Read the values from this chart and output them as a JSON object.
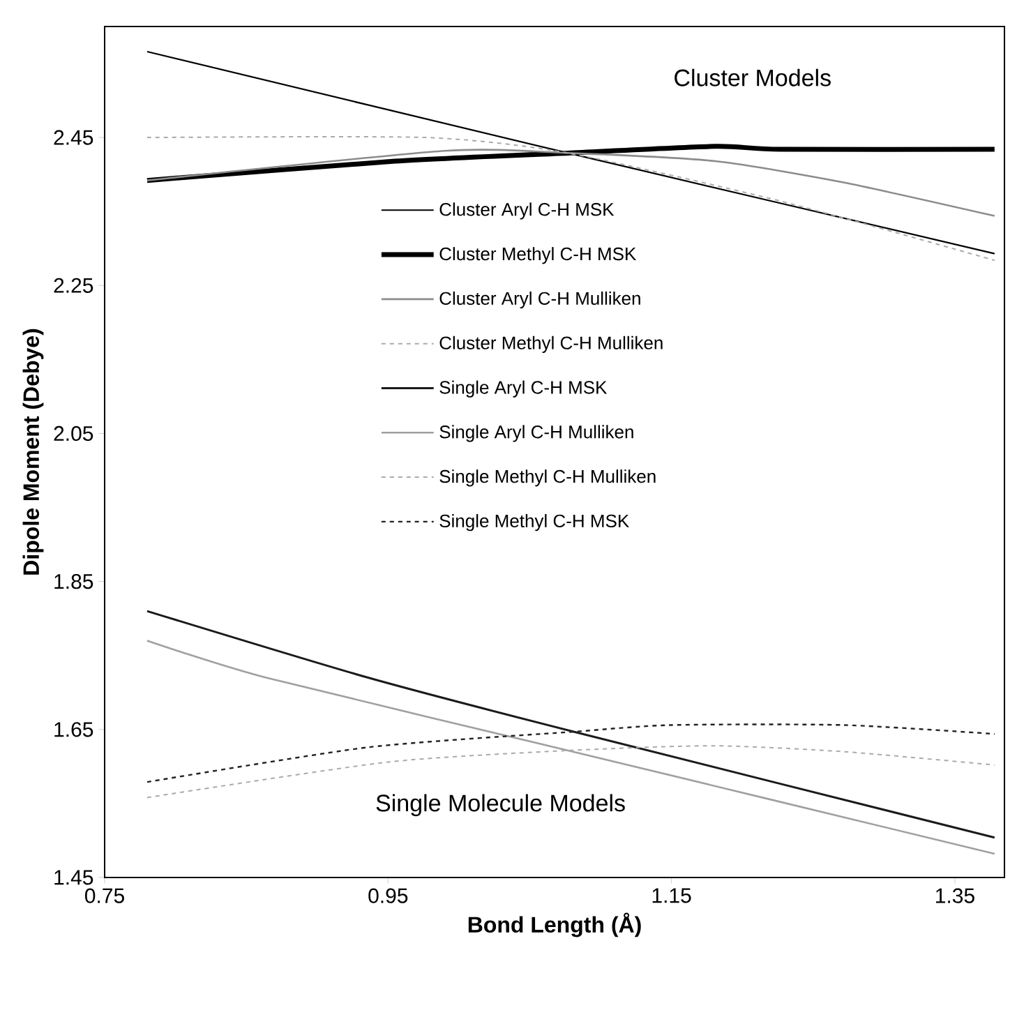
{
  "chart_data": {
    "type": "line",
    "xlabel": "Bond Length (Å)",
    "ylabel": "Dipole Moment (Debye)",
    "xlim": [
      0.75,
      1.385
    ],
    "ylim": [
      1.45,
      2.6
    ],
    "xticks": [
      0.75,
      0.95,
      1.15,
      1.35
    ],
    "yticks": [
      1.45,
      1.65,
      1.85,
      2.05,
      2.25,
      2.45
    ],
    "grid": false,
    "legend": "center",
    "marker": "none",
    "annotations": [
      "Cluster Models",
      "Single Molecule Models"
    ],
    "series": [
      {
        "name": "Cluster Aryl C-H  MSK",
        "color": "#000000",
        "line_style": "solid",
        "x": [
          0.78,
          1.077,
          1.378
        ],
        "values": [
          2.566,
          2.429,
          2.293
        ]
      },
      {
        "name": "Cluster Methyl C-H  MSK",
        "color": "#000000",
        "line_style": "solid",
        "x": [
          0.78,
          0.955,
          1.077,
          1.181,
          1.227,
          1.378
        ],
        "values": [
          2.392,
          2.418,
          2.429,
          2.438,
          2.434,
          2.434
        ]
      },
      {
        "name": "Cluster Aryl C-H  Mulliken",
        "color": "#8c8c8c",
        "line_style": "solid",
        "x": [
          0.78,
          0.99,
          1.077,
          1.181,
          1.272,
          1.378
        ],
        "values": [
          2.392,
          2.432,
          2.429,
          2.418,
          2.389,
          2.344
        ]
      },
      {
        "name": "Cluster Methyl C-H  Mulliken",
        "color": "#aaaaaa",
        "line_style": "dashed",
        "x": [
          0.78,
          0.977,
          1.077,
          1.227,
          1.378
        ],
        "values": [
          2.45,
          2.45,
          2.429,
          2.364,
          2.284
        ]
      },
      {
        "name": "Single Aryl C-H  MSK",
        "color": "#1a1a1a",
        "line_style": "solid",
        "x": [
          0.78,
          0.936,
          1.081,
          1.378
        ],
        "values": [
          1.81,
          1.72,
          1.647,
          1.504
        ]
      },
      {
        "name": "Single Aryl C-H  Mulliken",
        "color": "#a0a0a0",
        "line_style": "solid",
        "x": [
          0.78,
          0.864,
          1.072,
          1.378
        ],
        "values": [
          1.77,
          1.72,
          1.624,
          1.482
        ]
      },
      {
        "name": "Single Methyl C-H  Mulliken",
        "color": "#aaaaaa",
        "line_style": "dashed",
        "x": [
          0.78,
          0.95,
          1.081,
          1.18,
          1.272,
          1.378
        ],
        "values": [
          1.558,
          1.606,
          1.622,
          1.628,
          1.62,
          1.602
        ]
      },
      {
        "name": "Single Methyl C-H  MSK",
        "color": "#222222",
        "line_style": "dashed",
        "x": [
          0.78,
          0.936,
          1.081,
          1.15,
          1.272,
          1.378
        ],
        "values": [
          1.579,
          1.626,
          1.647,
          1.656,
          1.656,
          1.644
        ]
      }
    ]
  }
}
